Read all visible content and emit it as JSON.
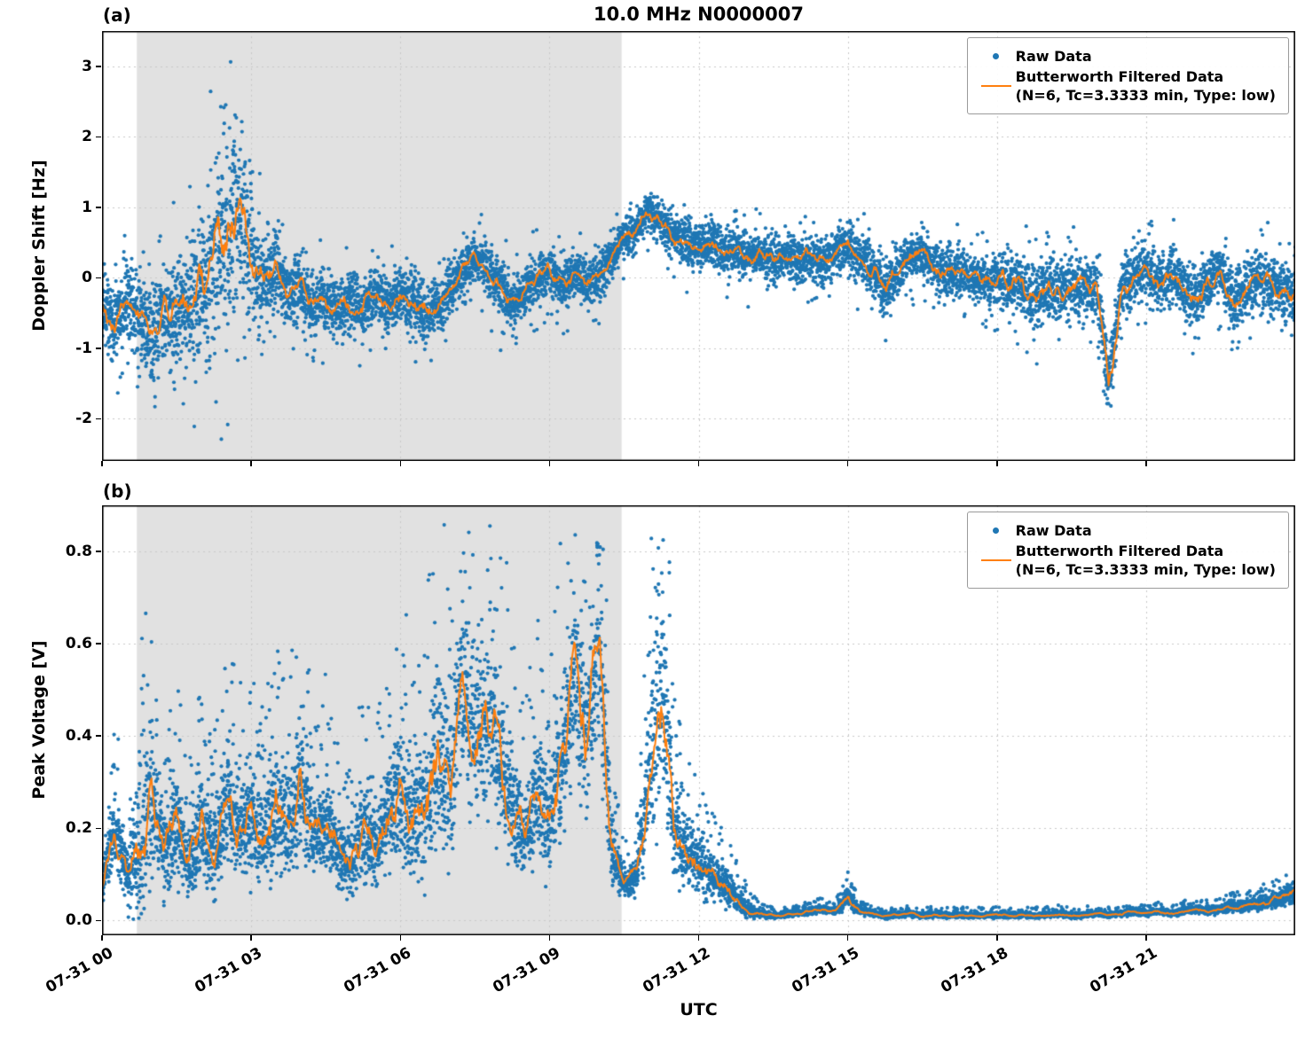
{
  "figure": {
    "title": "10.0 MHz N0000007",
    "panel_a_tag": "(a)",
    "panel_b_tag": "(b)",
    "xlabel": "UTC",
    "legend": {
      "raw_label": "Raw Data",
      "filtered_label": "Butterworth Filtered Data",
      "filtered_sublabel": "(N=6, Tc=3.3333 min, Type: low)"
    },
    "colors": {
      "raw": "#1f77b4",
      "filtered": "#ff7f0e",
      "shade": "#e1e1e1",
      "grid": "#c9c9c9",
      "spine": "#000000"
    }
  },
  "chart_data": [
    {
      "type": "scatter",
      "panel": "a",
      "title": "10.0 MHz N0000007",
      "ylabel": "Doppler Shift [Hz]",
      "xlabel": "UTC",
      "legend_position": "upper right",
      "grid": "dashed",
      "ylim": [
        -2.6,
        3.5
      ],
      "yticks": [
        -2,
        -1,
        0,
        1,
        2,
        3
      ],
      "ytick_labels": [
        "-2",
        "-1",
        "0",
        "1",
        "2",
        "3"
      ],
      "xlim_hours": [
        0,
        24
      ],
      "xtick_hours": [
        0,
        3,
        6,
        9,
        12,
        15,
        18,
        21
      ],
      "xtick_labels": [
        "07-31 00",
        "07-31 03",
        "07-31 06",
        "07-31 09",
        "07-31 12",
        "07-31 15",
        "07-31 18",
        "07-31 21"
      ],
      "shaded_region_hours": [
        0.7,
        10.45
      ],
      "sample_step_hours": 0.25,
      "series": [
        {
          "name": "Raw Data",
          "type": "scatter"
        },
        {
          "name": "Butterworth Filtered Data (N=6, Tc=3.3333 min, Type: low)",
          "type": "line"
        }
      ],
      "filtered": [
        -0.35,
        -0.75,
        -0.3,
        -0.5,
        -0.85,
        -0.45,
        -0.6,
        -0.35,
        -0.2,
        0.3,
        0.6,
        0.9,
        0.4,
        -0.1,
        0.15,
        -0.2,
        -0.15,
        -0.4,
        -0.3,
        -0.45,
        -0.35,
        -0.45,
        -0.25,
        -0.4,
        -0.25,
        -0.35,
        -0.5,
        -0.4,
        -0.2,
        0.1,
        0.3,
        0.1,
        -0.15,
        -0.35,
        -0.2,
        0.0,
        0.1,
        -0.1,
        0.05,
        -0.1,
        0.0,
        0.3,
        0.55,
        0.7,
        0.95,
        0.75,
        0.6,
        0.5,
        0.45,
        0.5,
        0.35,
        0.4,
        0.3,
        0.35,
        0.25,
        0.3,
        0.25,
        0.3,
        0.2,
        0.35,
        0.45,
        0.25,
        0.1,
        -0.15,
        0.1,
        0.3,
        0.35,
        0.15,
        0.05,
        0.1,
        0.0,
        -0.05,
        0.0,
        -0.05,
        -0.1,
        -0.3,
        -0.15,
        -0.2,
        -0.1,
        -0.15,
        -0.1,
        -1.5,
        -0.2,
        0.0,
        0.1,
        -0.1,
        0.05,
        -0.15,
        -0.3,
        -0.1,
        0.1,
        -0.4,
        -0.2,
        0.0,
        -0.1,
        -0.2,
        -0.3
      ],
      "raw_spread": [
        0.7,
        0.7,
        0.75,
        0.8,
        0.8,
        0.9,
        1.1,
        1.3,
        1.5,
        1.7,
        1.8,
        1.7,
        1.4,
        1.0,
        0.7,
        0.6,
        0.6,
        0.55,
        0.6,
        0.55,
        0.6,
        0.55,
        0.5,
        0.55,
        0.5,
        0.55,
        0.6,
        0.55,
        0.5,
        0.5,
        0.45,
        0.5,
        0.55,
        0.5,
        0.45,
        0.5,
        0.45,
        0.5,
        0.45,
        0.5,
        0.45,
        0.4,
        0.4,
        0.4,
        0.35,
        0.4,
        0.4,
        0.45,
        0.4,
        0.45,
        0.4,
        0.45,
        0.45,
        0.4,
        0.45,
        0.4,
        0.45,
        0.4,
        0.45,
        0.4,
        0.45,
        0.5,
        0.45,
        0.55,
        0.5,
        0.45,
        0.4,
        0.45,
        0.5,
        0.45,
        0.4,
        0.45,
        0.5,
        0.55,
        0.6,
        0.65,
        0.6,
        0.55,
        0.6,
        0.55,
        0.5,
        0.8,
        0.6,
        0.55,
        0.5,
        0.55,
        0.6,
        0.55,
        0.6,
        0.55,
        0.5,
        0.65,
        0.6,
        0.55,
        0.6,
        0.6,
        0.65
      ]
    },
    {
      "type": "scatter",
      "panel": "b",
      "ylabel": "Peak Voltage [V]",
      "xlabel": "UTC",
      "legend_position": "upper right",
      "grid": "dashed",
      "ylim": [
        -0.032,
        0.9
      ],
      "yticks": [
        0.0,
        0.2,
        0.4,
        0.6,
        0.8
      ],
      "ytick_labels": [
        "0.0",
        "0.2",
        "0.4",
        "0.6",
        "0.8"
      ],
      "xlim_hours": [
        0,
        24
      ],
      "xtick_hours": [
        0,
        3,
        6,
        9,
        12,
        15,
        18,
        21
      ],
      "xtick_labels": [
        "07-31 00",
        "07-31 03",
        "07-31 06",
        "07-31 09",
        "07-31 12",
        "07-31 15",
        "07-31 18",
        "07-31 21"
      ],
      "shaded_region_hours": [
        0.7,
        10.45
      ],
      "sample_step_hours": 0.25,
      "series": [
        {
          "name": "Raw Data",
          "type": "scatter"
        },
        {
          "name": "Butterworth Filtered Data (N=6, Tc=3.3333 min, Type: low)",
          "type": "line"
        }
      ],
      "filtered": [
        0.08,
        0.2,
        0.1,
        0.15,
        0.28,
        0.15,
        0.22,
        0.12,
        0.2,
        0.15,
        0.25,
        0.2,
        0.22,
        0.18,
        0.25,
        0.2,
        0.3,
        0.18,
        0.22,
        0.15,
        0.12,
        0.2,
        0.15,
        0.22,
        0.28,
        0.2,
        0.25,
        0.35,
        0.3,
        0.52,
        0.4,
        0.45,
        0.35,
        0.25,
        0.18,
        0.28,
        0.22,
        0.35,
        0.55,
        0.4,
        0.6,
        0.15,
        0.08,
        0.1,
        0.3,
        0.52,
        0.2,
        0.15,
        0.12,
        0.1,
        0.08,
        0.05,
        0.02,
        0.015,
        0.01,
        0.012,
        0.015,
        0.02,
        0.025,
        0.02,
        0.05,
        0.02,
        0.015,
        0.01,
        0.012,
        0.015,
        0.01,
        0.012,
        0.01,
        0.012,
        0.01,
        0.01,
        0.012,
        0.01,
        0.012,
        0.01,
        0.012,
        0.015,
        0.01,
        0.012,
        0.015,
        0.012,
        0.015,
        0.02,
        0.015,
        0.02,
        0.015,
        0.02,
        0.025,
        0.02,
        0.025,
        0.03,
        0.03,
        0.035,
        0.04,
        0.05,
        0.06
      ],
      "raw_spread": [
        0.05,
        0.12,
        0.08,
        0.2,
        0.25,
        0.12,
        0.15,
        0.1,
        0.15,
        0.12,
        0.18,
        0.15,
        0.15,
        0.12,
        0.18,
        0.15,
        0.2,
        0.12,
        0.15,
        0.1,
        0.1,
        0.15,
        0.12,
        0.15,
        0.22,
        0.15,
        0.2,
        0.25,
        0.22,
        0.28,
        0.25,
        0.28,
        0.25,
        0.18,
        0.12,
        0.2,
        0.15,
        0.25,
        0.28,
        0.25,
        0.28,
        0.1,
        0.04,
        0.06,
        0.2,
        0.3,
        0.15,
        0.1,
        0.08,
        0.07,
        0.06,
        0.04,
        0.02,
        0.01,
        0.008,
        0.008,
        0.008,
        0.01,
        0.012,
        0.01,
        0.03,
        0.01,
        0.008,
        0.008,
        0.008,
        0.008,
        0.008,
        0.008,
        0.008,
        0.008,
        0.008,
        0.008,
        0.008,
        0.008,
        0.008,
        0.008,
        0.008,
        0.008,
        0.008,
        0.008,
        0.008,
        0.008,
        0.008,
        0.01,
        0.008,
        0.01,
        0.008,
        0.01,
        0.012,
        0.01,
        0.012,
        0.015,
        0.015,
        0.018,
        0.02,
        0.025,
        0.03
      ]
    }
  ]
}
